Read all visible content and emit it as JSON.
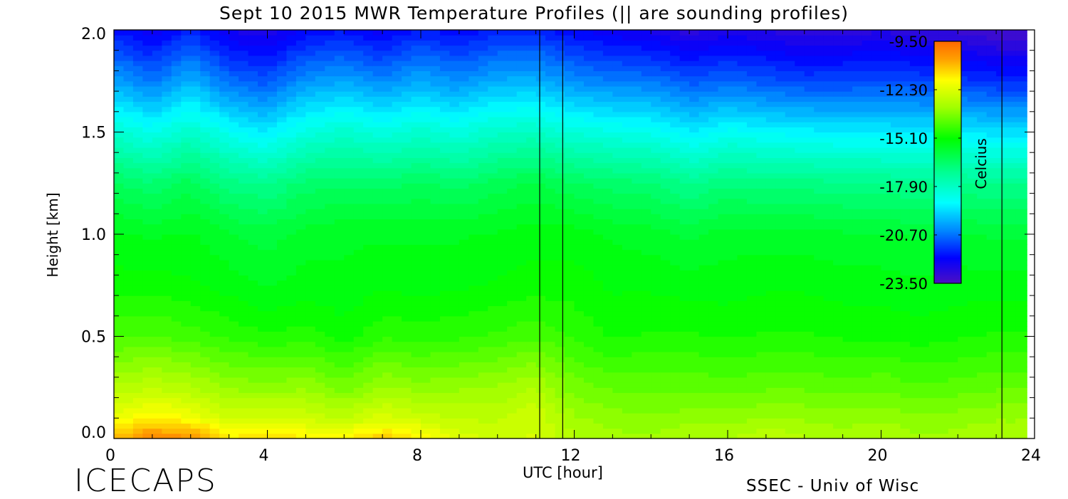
{
  "chart_data": {
    "type": "heatmap",
    "title": "Sept 10 2015 MWR Temperature Profiles (|| are sounding profiles)",
    "xlabel": "UTC [hour]",
    "ylabel": "Height [km]",
    "xlim": [
      0,
      24
    ],
    "ylim": [
      0,
      2.0
    ],
    "x_ticks": [
      "0",
      "4",
      "8",
      "12",
      "16",
      "20",
      "24"
    ],
    "y_ticks": [
      "0.0",
      "0.5",
      "1.0",
      "1.5",
      "2.0"
    ],
    "colorbar": {
      "label": "Celcius",
      "range": [
        -23.5,
        -9.5
      ],
      "tick_labels": [
        "-9.50",
        "-12.30",
        "-15.10",
        "-17.90",
        "-20.70",
        "-23.50"
      ],
      "colormap": [
        {
          "value": -23.5,
          "color": "#5010c0"
        },
        {
          "value": -22.0,
          "color": "#0000ff"
        },
        {
          "value": -20.5,
          "color": "#0080ff"
        },
        {
          "value": -18.8,
          "color": "#00ffff"
        },
        {
          "value": -17.0,
          "color": "#00ff90"
        },
        {
          "value": -15.1,
          "color": "#00ff00"
        },
        {
          "value": -13.3,
          "color": "#a0ff00"
        },
        {
          "value": -11.7,
          "color": "#ffff00"
        },
        {
          "value": -10.5,
          "color": "#ffa000"
        },
        {
          "value": -9.5,
          "color": "#ff6a00"
        }
      ]
    },
    "sounding_markers_hours": [
      11.1,
      11.7,
      23.15
    ],
    "data_end_hour": 23.8,
    "heights_km": [
      0.0,
      0.1,
      0.25,
      0.5,
      0.75,
      1.0,
      1.25,
      1.5,
      1.75,
      2.0
    ],
    "times_hour": [
      0,
      1,
      2,
      3,
      4,
      5,
      6,
      7,
      8,
      9,
      10,
      11,
      12,
      13,
      14,
      15,
      16,
      17,
      18,
      19,
      20,
      21,
      22,
      23,
      23.8
    ],
    "temperature_c": [
      [
        -10.8,
        -12.0,
        -13.0,
        -14.3,
        -15.0,
        -15.4,
        -16.3,
        -18.0,
        -20.0,
        -21.8
      ],
      [
        -10.0,
        -11.5,
        -12.8,
        -14.2,
        -15.0,
        -15.5,
        -16.6,
        -18.5,
        -20.6,
        -22.3
      ],
      [
        -10.2,
        -11.8,
        -13.0,
        -14.4,
        -15.1,
        -15.4,
        -16.2,
        -17.9,
        -19.8,
        -21.6
      ],
      [
        -11.5,
        -12.5,
        -13.4,
        -14.6,
        -15.3,
        -15.7,
        -16.8,
        -18.6,
        -20.7,
        -22.4
      ],
      [
        -11.2,
        -12.4,
        -13.5,
        -14.8,
        -15.5,
        -15.9,
        -17.0,
        -19.0,
        -21.0,
        -22.6
      ],
      [
        -11.5,
        -12.5,
        -13.4,
        -14.7,
        -15.3,
        -15.6,
        -16.5,
        -18.3,
        -20.2,
        -22.0
      ],
      [
        -11.6,
        -12.8,
        -13.8,
        -15.0,
        -15.4,
        -15.5,
        -16.4,
        -18.0,
        -20.0,
        -21.8
      ],
      [
        -11.0,
        -12.3,
        -13.3,
        -14.6,
        -15.2,
        -15.5,
        -16.5,
        -18.3,
        -20.4,
        -22.2
      ],
      [
        -11.5,
        -12.6,
        -13.5,
        -14.7,
        -15.3,
        -15.5,
        -16.3,
        -18.0,
        -19.9,
        -21.7
      ],
      [
        -12.3,
        -12.8,
        -13.4,
        -14.6,
        -15.2,
        -15.5,
        -16.5,
        -18.3,
        -20.3,
        -22.0
      ],
      [
        -12.5,
        -12.8,
        -13.3,
        -14.5,
        -15.1,
        -15.4,
        -16.2,
        -17.9,
        -19.9,
        -21.6
      ],
      [
        -12.4,
        -12.5,
        -13.0,
        -14.3,
        -15.0,
        -15.3,
        -16.0,
        -17.8,
        -19.8,
        -21.6
      ],
      [
        -13.0,
        -13.3,
        -13.8,
        -14.6,
        -15.0,
        -15.3,
        -16.3,
        -18.2,
        -20.3,
        -22.0
      ],
      [
        -13.2,
        -13.5,
        -14.0,
        -14.9,
        -15.2,
        -15.5,
        -16.5,
        -18.4,
        -20.5,
        -22.3
      ],
      [
        -13.3,
        -13.6,
        -14.0,
        -14.8,
        -15.2,
        -15.6,
        -16.6,
        -18.5,
        -20.6,
        -22.4
      ],
      [
        -13.0,
        -13.5,
        -14.0,
        -14.8,
        -15.3,
        -15.8,
        -17.0,
        -19.0,
        -21.0,
        -22.8
      ],
      [
        -13.1,
        -13.5,
        -14.1,
        -14.9,
        -15.3,
        -15.6,
        -16.7,
        -18.6,
        -20.8,
        -22.5
      ],
      [
        -12.8,
        -13.3,
        -14.0,
        -14.8,
        -15.2,
        -15.6,
        -16.8,
        -18.8,
        -21.0,
        -22.7
      ],
      [
        -13.0,
        -13.4,
        -14.0,
        -14.8,
        -15.2,
        -15.6,
        -16.8,
        -18.9,
        -21.2,
        -22.9
      ],
      [
        -13.2,
        -13.5,
        -14.1,
        -14.9,
        -15.3,
        -15.7,
        -16.9,
        -19.0,
        -21.2,
        -22.8
      ],
      [
        -13.0,
        -13.4,
        -14.0,
        -14.9,
        -15.3,
        -15.7,
        -16.9,
        -19.0,
        -21.1,
        -22.7
      ],
      [
        -13.3,
        -13.6,
        -14.2,
        -15.0,
        -15.4,
        -15.8,
        -17.0,
        -19.1,
        -21.2,
        -22.9
      ],
      [
        -13.2,
        -13.5,
        -14.1,
        -14.9,
        -15.3,
        -15.7,
        -16.9,
        -19.0,
        -21.3,
        -23.0
      ],
      [
        -13.0,
        -13.4,
        -14.0,
        -14.8,
        -15.3,
        -15.8,
        -17.0,
        -19.2,
        -21.5,
        -23.3
      ],
      [
        -13.0,
        -13.4,
        -14.0,
        -14.8,
        -15.3,
        -15.8,
        -17.0,
        -19.2,
        -21.5,
        -23.3
      ]
    ]
  },
  "footer": {
    "logo_text": "ICECAPS",
    "credit": "SSEC - Univ of Wisc"
  }
}
